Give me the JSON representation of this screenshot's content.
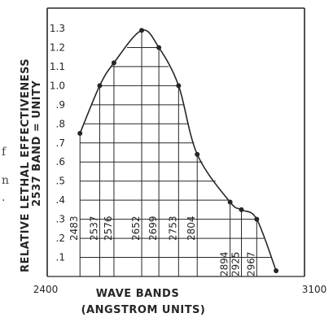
{
  "chart_data": {
    "type": "line",
    "ylabel_line1": "RELATIVE LETHAL EFFECTIVENESS",
    "ylabel_line2": "2537 BAND = UNITY",
    "xlabel_line1": "WAVE BANDS",
    "xlabel_line2": "(ANGSTROM UNITS)",
    "xlim": [
      2400,
      3100
    ],
    "x_tick_labels": [
      "2400",
      "3100"
    ],
    "ylim": [
      0,
      1.35
    ],
    "y_ticks": [
      ".1",
      ".2",
      ".3",
      ".4",
      ".5",
      ".6",
      ".7",
      ".8",
      ".9",
      "1.0",
      "1.1",
      "1.2",
      "1.3"
    ],
    "grid": true,
    "series": [
      {
        "x": [
          2483,
          2537,
          2576,
          2652,
          2699,
          2753,
          2804,
          2894,
          2925,
          2967,
          3020
        ],
        "y": [
          0.75,
          1.0,
          1.12,
          1.29,
          1.2,
          1.0,
          0.64,
          0.39,
          0.35,
          0.3,
          0.03
        ]
      }
    ],
    "band_labels": [
      "2483",
      "2537",
      "2576",
      "2652",
      "2699",
      "2753",
      "2804",
      "2894",
      "2925",
      "2967"
    ]
  },
  "edge_text": [
    "f",
    "n",
    "."
  ]
}
